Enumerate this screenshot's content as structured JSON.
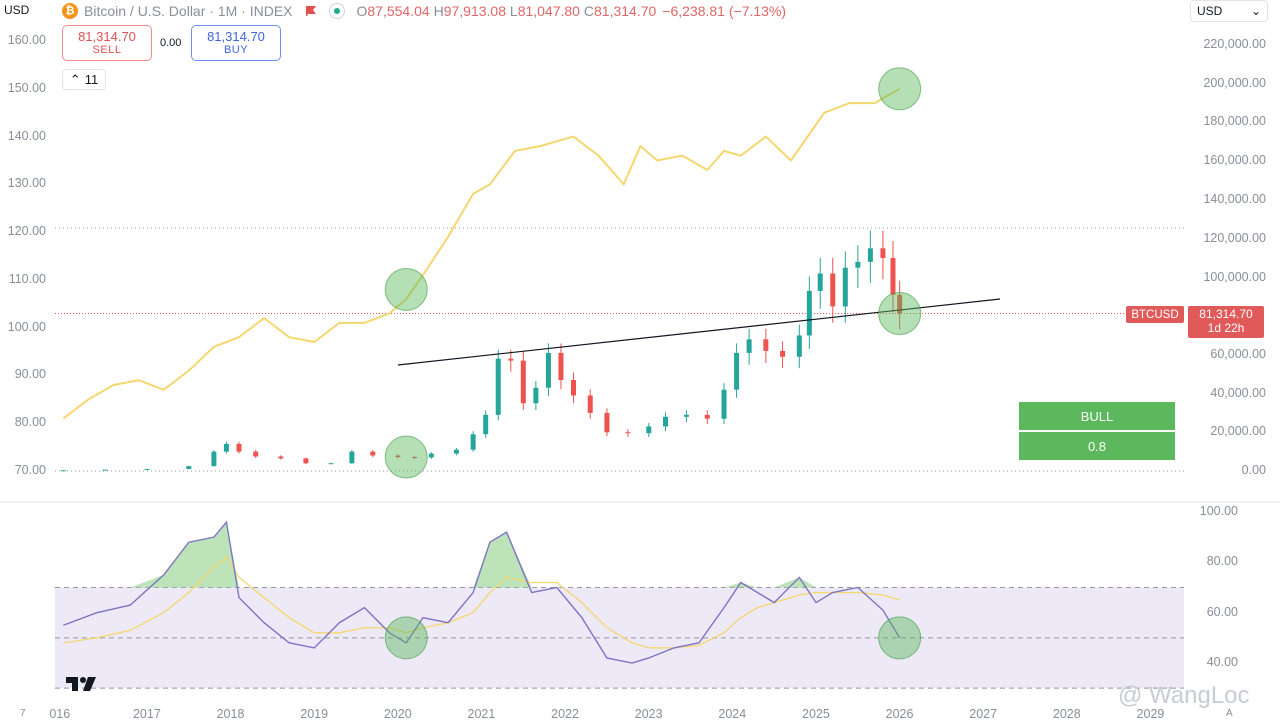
{
  "header": {
    "left_unit": "USD",
    "coin_symbol": "₿",
    "title": "Bitcoin / U.S. Dollar · 1M · INDEX",
    "ohlc": [
      {
        "k": "O",
        "v": "87,554.04"
      },
      {
        "k": "H",
        "v": "97,913.08"
      },
      {
        "k": "L",
        "v": "81,047.80"
      },
      {
        "k": "C",
        "v": "81,314.70"
      }
    ],
    "change": "−6,238.81 (−7.13%)"
  },
  "trade": {
    "sell_price": "81,314.70",
    "sell_label": "SELL",
    "spread": "0.00",
    "buy_price": "81,314.70",
    "buy_label": "BUY"
  },
  "collapse": {
    "chevron": "⌃",
    "count": "11"
  },
  "currency": {
    "value": "USD",
    "chevron": "⌄"
  },
  "colors": {
    "up": "#26a69a",
    "down": "#ef5350",
    "ratio": "#f5d76e",
    "rsi": "#7e74c3",
    "rsi_ma": "#f5d76e",
    "band": "#ede9f7",
    "highlight": "#5cb85c"
  },
  "price_tag": {
    "symbol": "BTCUSD",
    "price": "81,314.70",
    "countdown": "1d 22h"
  },
  "signal": {
    "label": "BULL",
    "value": "0.8"
  },
  "watermark": "@ WangLoc",
  "corner_left": "7",
  "corner_right": "A",
  "chart_data": [
    {
      "type": "line",
      "ylim": [
        70,
        160
      ],
      "y_ticks": [
        "160.00",
        "150.00",
        "140.00",
        "130.00",
        "120.00",
        "110.00",
        "100.00",
        "90.00",
        "80.00",
        "70.00"
      ],
      "x": [
        2016.0,
        2016.3,
        2016.6,
        2016.9,
        2017.2,
        2017.5,
        2017.8,
        2018.1,
        2018.4,
        2018.7,
        2019.0,
        2019.3,
        2019.6,
        2019.9,
        2020.1,
        2020.3,
        2020.6,
        2020.9,
        2021.1,
        2021.4,
        2021.7,
        2021.9,
        2022.1,
        2022.4,
        2022.7,
        2022.9,
        2023.1,
        2023.4,
        2023.7,
        2023.9,
        2024.1,
        2024.4,
        2024.7,
        2024.9,
        2025.1,
        2025.4,
        2025.7,
        2025.9,
        2026.0
      ],
      "values": [
        81,
        85,
        88,
        89,
        87,
        91,
        96,
        98,
        102,
        98,
        97,
        101,
        101,
        103,
        106,
        111,
        119,
        128,
        130,
        137,
        138,
        139,
        140,
        136,
        130,
        138,
        135,
        136,
        133,
        137,
        136,
        140,
        135,
        140,
        145,
        147,
        147,
        149,
        150
      ]
    },
    {
      "type": "candlestick",
      "ylim": [
        0,
        220000
      ],
      "y_ticks": [
        "220,000.00",
        "200,000.00",
        "180,000.00",
        "160,000.00",
        "140,000.00",
        "120,000.00",
        "100,000.00",
        "60,000.00",
        "40,000.00",
        "20,000.00",
        "0.00"
      ],
      "x_ticks": [
        "016",
        "2017",
        "2018",
        "2019",
        "2020",
        "2021",
        "2022",
        "2023",
        "2024",
        "2025",
        "2026",
        "2027",
        "2028",
        "2029"
      ],
      "x": [
        2016.0,
        2016.5,
        2017.0,
        2017.5,
        2017.8,
        2017.95,
        2018.1,
        2018.3,
        2018.6,
        2018.9,
        2019.2,
        2019.45,
        2019.7,
        2020.0,
        2020.2,
        2020.4,
        2020.7,
        2020.9,
        2021.05,
        2021.2,
        2021.35,
        2021.5,
        2021.65,
        2021.8,
        2021.95,
        2022.1,
        2022.3,
        2022.5,
        2022.75,
        2023.0,
        2023.2,
        2023.45,
        2023.7,
        2023.9,
        2024.05,
        2024.2,
        2024.4,
        2024.6,
        2024.8,
        2024.92,
        2025.05,
        2025.2,
        2025.35,
        2025.5,
        2025.65,
        2025.8,
        2025.92,
        2026.0
      ],
      "values": [
        400,
        700,
        1000,
        2500,
        10000,
        14000,
        10000,
        7500,
        6500,
        4000,
        4000,
        10000,
        8000,
        7200,
        7000,
        9000,
        11000,
        19000,
        29000,
        58000,
        57000,
        35000,
        43000,
        61000,
        47000,
        39000,
        30000,
        20000,
        19500,
        23000,
        28000,
        29000,
        27000,
        42000,
        61000,
        68000,
        62000,
        59000,
        70000,
        93000,
        102000,
        85000,
        105000,
        108000,
        115000,
        110000,
        91000,
        81314.7
      ]
    },
    {
      "type": "line",
      "ylim": [
        40,
        100
      ],
      "y_ticks": [
        "100.00",
        "80.00",
        "60.00",
        "40.00"
      ],
      "bands": [
        70,
        50,
        30
      ],
      "x": [
        2016.0,
        2016.4,
        2016.8,
        2017.2,
        2017.5,
        2017.8,
        2017.95,
        2018.1,
        2018.4,
        2018.7,
        2019.0,
        2019.3,
        2019.6,
        2019.9,
        2020.1,
        2020.3,
        2020.6,
        2020.9,
        2021.1,
        2021.3,
        2021.6,
        2021.9,
        2022.2,
        2022.5,
        2022.8,
        2023.0,
        2023.3,
        2023.6,
        2023.9,
        2024.1,
        2024.3,
        2024.5,
        2024.8,
        2025.0,
        2025.2,
        2025.5,
        2025.8,
        2026.0
      ],
      "series": [
        {
          "values": [
            55,
            60,
            63,
            75,
            88,
            90,
            96,
            66,
            56,
            48,
            46,
            56,
            62,
            52,
            48,
            58,
            56,
            68,
            88,
            92,
            68,
            70,
            58,
            42,
            40,
            42,
            46,
            48,
            62,
            72,
            68,
            64,
            74,
            64,
            68,
            70,
            61,
            50
          ]
        },
        {
          "values": [
            48,
            50,
            53,
            60,
            68,
            78,
            82,
            74,
            66,
            58,
            52,
            52,
            54,
            54,
            52,
            54,
            56,
            60,
            68,
            74,
            72,
            72,
            64,
            54,
            48,
            46,
            46,
            47,
            52,
            58,
            62,
            64,
            67,
            68,
            68,
            68,
            67,
            65
          ]
        }
      ]
    }
  ]
}
